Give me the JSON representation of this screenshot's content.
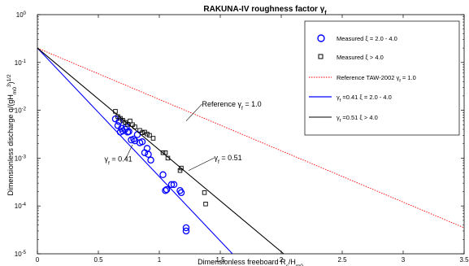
{
  "chart_data": {
    "type": "scatter",
    "title": "RAKUNA-IV roughness factor γ",
    "title_sub": "f",
    "xlabel": "Dimensionless freeboard R",
    "xlabel_sub1": "c",
    "xlabel_mid": "/H",
    "xlabel_sub2": "m0",
    "ylabel": "Dimensionless discharge q/(gH",
    "ylabel_sub": "m0",
    "ylabel_sup": "3",
    "ylabel_tail": ")",
    "ylabel_exp": "1/2",
    "x_scale": "linear",
    "y_scale": "log",
    "xlim": [
      0,
      3.5
    ],
    "ylim": [
      1e-05,
      1
    ],
    "x_ticks": [
      {
        "value": 0,
        "label": "0"
      },
      {
        "value": 0.5,
        "label": "0.5"
      },
      {
        "value": 1,
        "label": "1"
      },
      {
        "value": 1.5,
        "label": "1.5"
      },
      {
        "value": 2,
        "label": "2"
      },
      {
        "value": 2.5,
        "label": "2.5"
      },
      {
        "value": 3,
        "label": "3"
      },
      {
        "value": 3.5,
        "label": "3.5"
      }
    ],
    "y_ticks": [
      {
        "value": 1e-05,
        "base": "10",
        "exp": "-5"
      },
      {
        "value": 0.0001,
        "base": "10",
        "exp": "-4"
      },
      {
        "value": 0.001,
        "base": "10",
        "exp": "-3"
      },
      {
        "value": 0.01,
        "base": "10",
        "exp": "-2"
      },
      {
        "value": 0.1,
        "base": "10",
        "exp": "-1"
      },
      {
        "value": 1,
        "base": "10",
        "exp": "0"
      }
    ],
    "grid": false,
    "legend_position": "top-right",
    "series": [
      {
        "name": "Measured ξ = 2.0 - 4.0",
        "kind": "scatter",
        "marker": "circle",
        "color": "#0000ff",
        "points": [
          [
            0.64,
            0.0066
          ],
          [
            0.66,
            0.0048
          ],
          [
            0.67,
            0.0058
          ],
          [
            0.68,
            0.0035
          ],
          [
            0.69,
            0.0042
          ],
          [
            0.7,
            0.0037
          ],
          [
            0.72,
            0.004
          ],
          [
            0.73,
            0.0045
          ],
          [
            0.74,
            0.0035
          ],
          [
            0.75,
            0.0036
          ],
          [
            0.77,
            0.0024
          ],
          [
            0.79,
            0.0025
          ],
          [
            0.8,
            0.0023
          ],
          [
            0.82,
            0.0031
          ],
          [
            0.84,
            0.0021
          ],
          [
            0.86,
            0.0022
          ],
          [
            0.88,
            0.0013
          ],
          [
            0.9,
            0.0016
          ],
          [
            0.91,
            0.0012
          ],
          [
            0.93,
            0.00091
          ],
          [
            1.03,
            0.00045
          ],
          [
            1.05,
            0.00021
          ],
          [
            1.06,
            0.00022
          ],
          [
            1.1,
            0.00028
          ],
          [
            1.12,
            0.00028
          ],
          [
            1.17,
            0.00021
          ],
          [
            1.18,
            0.00019
          ],
          [
            1.22,
            3.5e-05
          ],
          [
            1.22,
            3e-05
          ]
        ]
      },
      {
        "name": "Measured ξ > 4.0",
        "kind": "scatter",
        "marker": "square",
        "color": "#000000",
        "points": [
          [
            0.64,
            0.0095
          ],
          [
            0.66,
            0.0074
          ],
          [
            0.68,
            0.0068
          ],
          [
            0.7,
            0.0062
          ],
          [
            0.72,
            0.0056
          ],
          [
            0.74,
            0.0051
          ],
          [
            0.76,
            0.006
          ],
          [
            0.78,
            0.005
          ],
          [
            0.8,
            0.0045
          ],
          [
            0.84,
            0.0038
          ],
          [
            0.86,
            0.0034
          ],
          [
            0.88,
            0.0035
          ],
          [
            0.9,
            0.0032
          ],
          [
            0.92,
            0.003
          ],
          [
            0.95,
            0.0026
          ],
          [
            1.03,
            0.0013
          ],
          [
            1.05,
            0.0013
          ],
          [
            1.07,
            0.001
          ],
          [
            1.17,
            0.00055
          ],
          [
            1.18,
            0.00062
          ],
          [
            1.37,
            0.00019
          ],
          [
            1.38,
            0.00011
          ]
        ]
      },
      {
        "name": "Reference TAW-2002 γ",
        "name_sub": "f",
        "name_tail": " = 1.0",
        "kind": "line",
        "style": "dotted",
        "color": "#ff0000",
        "points": [
          [
            0,
            0.2
          ],
          [
            3.5,
            3.5e-05
          ]
        ]
      },
      {
        "name": "γ",
        "name_sub": "f",
        "name_tail": " =0.41  ξ = 2.0 - 4.0",
        "kind": "line",
        "style": "solid",
        "color": "#0000ff",
        "points": [
          [
            0,
            0.2
          ],
          [
            1.6,
            1e-05
          ]
        ]
      },
      {
        "name": "γ",
        "name_sub": "f",
        "name_tail": " =0.51  ξ > 4.0",
        "kind": "line",
        "style": "solid",
        "color": "#000000",
        "points": [
          [
            0,
            0.2
          ],
          [
            2.02,
            1e-05
          ]
        ]
      }
    ],
    "annotations": [
      {
        "text_pre": "Reference γ",
        "sub": "f",
        "text_post": " = 1.0",
        "x": 1.35,
        "y": 0.012,
        "arrow_to": [
          1.22,
          0.006
        ]
      },
      {
        "text_pre": "γ",
        "sub": "f",
        "text_post": " = 0.41",
        "x": 0.55,
        "y": 0.00085,
        "arrow_to": [
          0.78,
          0.0019
        ]
      },
      {
        "text_pre": "γ",
        "sub": "f",
        "text_post": " = 0.51",
        "x": 1.45,
        "y": 0.0009,
        "arrow_to": [
          1.24,
          0.00055
        ]
      }
    ]
  }
}
